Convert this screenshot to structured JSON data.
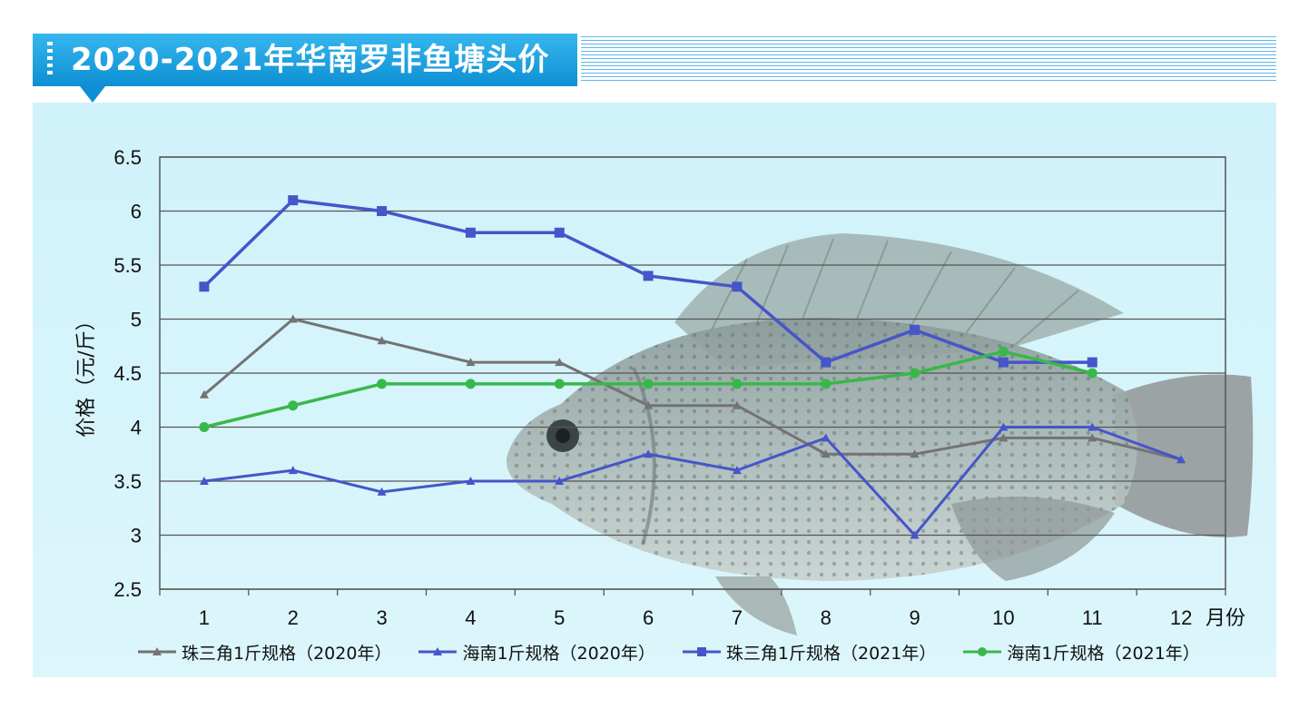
{
  "title": "2020-2021年华南罗非鱼塘头价",
  "colors": {
    "banner": "#1a9ee0",
    "panel": "#d4f3fb",
    "grid": "#555555",
    "series_gray": "#737373",
    "series_blue": "#4655c9",
    "series_green": "#38b849"
  },
  "chart_data": {
    "type": "line",
    "title": "2020-2021年华南罗非鱼塘头价",
    "xlabel": "月份",
    "ylabel": "价格（元/斤）",
    "categories": [
      "1",
      "2",
      "3",
      "4",
      "5",
      "6",
      "7",
      "8",
      "9",
      "10",
      "11",
      "12"
    ],
    "ylim": [
      2.5,
      6.5
    ],
    "yticks": [
      "2.5",
      "3",
      "3.5",
      "4",
      "4.5",
      "5",
      "5.5",
      "6",
      "6.5"
    ],
    "grid": true,
    "legend_position": "bottom",
    "series": [
      {
        "name": "珠三角1斤规格（2020年）",
        "color": "#737373",
        "marker": "triangle",
        "values": [
          4.3,
          5.0,
          4.8,
          4.6,
          4.6,
          4.2,
          4.2,
          3.75,
          3.75,
          3.9,
          3.9,
          3.7
        ]
      },
      {
        "name": "海南1斤规格（2020年）",
        "color": "#4655c9",
        "marker": "triangle",
        "values": [
          3.5,
          3.6,
          3.4,
          3.5,
          3.5,
          3.75,
          3.6,
          3.9,
          3.0,
          4.0,
          4.0,
          3.7
        ]
      },
      {
        "name": "珠三角1斤规格（2021年）",
        "color": "#4655c9",
        "marker": "square",
        "values": [
          5.3,
          6.1,
          6.0,
          5.8,
          5.8,
          5.4,
          5.3,
          4.6,
          4.9,
          4.6,
          4.6,
          null
        ]
      },
      {
        "name": "海南1斤规格（2021年）",
        "color": "#38b849",
        "marker": "circle",
        "values": [
          4.0,
          4.2,
          4.4,
          4.4,
          4.4,
          4.4,
          4.4,
          4.4,
          4.5,
          4.7,
          4.5,
          null
        ]
      }
    ]
  }
}
